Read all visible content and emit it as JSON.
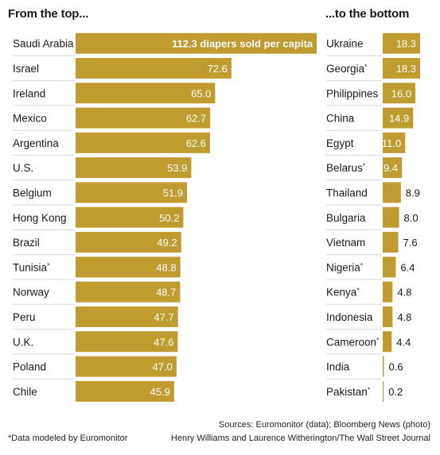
{
  "chart_data": [
    {
      "type": "bar",
      "orientation": "horizontal",
      "title": "From the top...",
      "unit_label": "diapers sold per capita",
      "bar_color": "#bf9b30",
      "categories": [
        "Saudi Arabia",
        "Israel",
        "Ireland",
        "Mexico",
        "Argentina",
        "U.S.",
        "Belgium",
        "Hong Kong",
        "Brazil",
        "Tunisia",
        "Norway",
        "Peru",
        "U.K.",
        "Poland",
        "Chile"
      ],
      "values": [
        112.3,
        72.6,
        65.0,
        62.7,
        62.6,
        53.9,
        51.9,
        50.2,
        49.2,
        48.8,
        48.7,
        47.7,
        47.6,
        47.0,
        45.9
      ],
      "value_labels": [
        "112.3 diapers sold per capita",
        "72.6",
        "65.0",
        "62.7",
        "62.6",
        "53.9",
        "51.9",
        "50.2",
        "49.2",
        "48.8",
        "48.7",
        "47.7",
        "47.6",
        "47.0",
        "45.9"
      ],
      "modeled": [
        false,
        false,
        false,
        false,
        false,
        false,
        false,
        false,
        false,
        true,
        false,
        false,
        false,
        false,
        false
      ]
    },
    {
      "type": "bar",
      "orientation": "horizontal",
      "title": "...to the bottom",
      "bar_color": "#bf9b30",
      "categories": [
        "Ukraine",
        "Georgia",
        "Philippines",
        "China",
        "Egypt",
        "Belarus",
        "Thailand",
        "Bulgaria",
        "Vietnam",
        "Nigeria",
        "Kenya",
        "Indonesia",
        "Cameroon",
        "India",
        "Pakistan"
      ],
      "values": [
        18.3,
        18.3,
        16.0,
        14.9,
        11.0,
        9.4,
        8.9,
        8.0,
        7.6,
        6.4,
        4.8,
        4.8,
        4.4,
        0.6,
        0.2
      ],
      "value_labels": [
        "18.3",
        "18.3",
        "16.0",
        "14.9",
        "11.0",
        "9.4",
        "8.9",
        "8.0",
        "7.6",
        "6.4",
        "4.8",
        "4.8",
        "4.4",
        "0.6",
        "0.2"
      ],
      "modeled": [
        false,
        true,
        false,
        false,
        false,
        true,
        false,
        false,
        false,
        true,
        true,
        false,
        true,
        false,
        true
      ]
    }
  ],
  "modeled_marker": "*",
  "footnotes": {
    "modeled": "*Data modeled by Euromonitor",
    "sources": "Sources: Euromonitor (data); Bloomberg News (photo)",
    "authors": "Henry Williams and Laurence Witherington/The Wall Street Journal"
  }
}
